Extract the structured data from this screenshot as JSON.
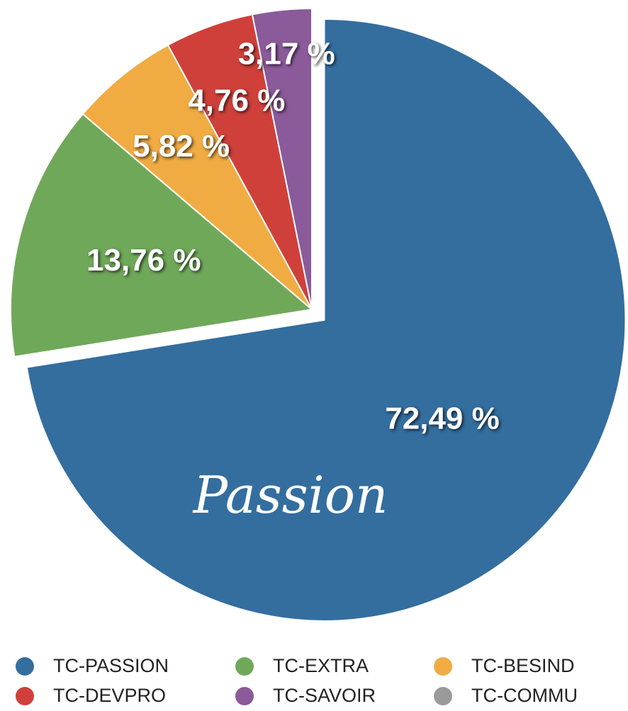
{
  "chart_data": {
    "type": "pie",
    "categories": [
      "TC-PASSION",
      "TC-EXTRA",
      "TC-BESIND",
      "TC-DEVPRO",
      "TC-SAVOIR",
      "TC-COMMU"
    ],
    "values": [
      72.49,
      13.76,
      5.82,
      4.76,
      3.17,
      0
    ],
    "value_labels": [
      "72,49 %",
      "13,76 %",
      "5,82 %",
      "4,76 %",
      "3,17 %",
      null
    ],
    "colors": [
      "#336e9f",
      "#70a85a",
      "#f0ac43",
      "#d0403b",
      "#8b5a9a",
      "#9a9a9a"
    ],
    "exploded": [
      true,
      false,
      false,
      false,
      false,
      false
    ],
    "annotation": "Passion",
    "legend": "bottom"
  }
}
